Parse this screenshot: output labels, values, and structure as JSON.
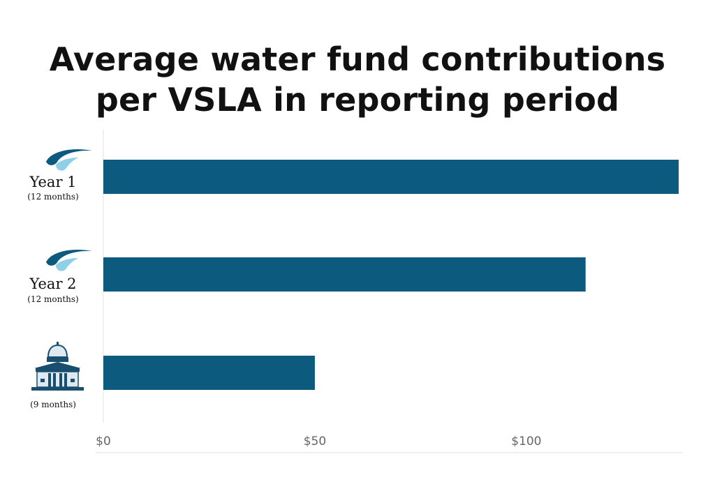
{
  "chart_data": {
    "type": "bar",
    "orientation": "horizontal",
    "title_lines": [
      "Average water fund contributions",
      "per VSLA in reporting period"
    ],
    "categories": [
      {
        "label": "Year 1",
        "sublabel": "(12 months)",
        "icon": "water-drop-logo-icon"
      },
      {
        "label": "Year 2",
        "sublabel": "(12 months)",
        "icon": "water-drop-logo-icon"
      },
      {
        "label": "",
        "sublabel": "(9 months)",
        "icon": "government-building-icon"
      }
    ],
    "values": [
      136,
      114,
      50
    ],
    "xlim": [
      0,
      137
    ],
    "x_ticks": [
      0,
      50,
      100
    ],
    "x_tick_labels": [
      "$0",
      "$50",
      "$100"
    ],
    "xlabel": "",
    "ylabel": "",
    "grid": false,
    "legend": "none",
    "colors": {
      "bar": "#0c5a7e",
      "drop_dark": "#0c5a7e",
      "drop_light": "#8fd0e8",
      "building": "#1a4e6e",
      "axis": "#e0e0e0",
      "tick_text": "#666666"
    }
  }
}
